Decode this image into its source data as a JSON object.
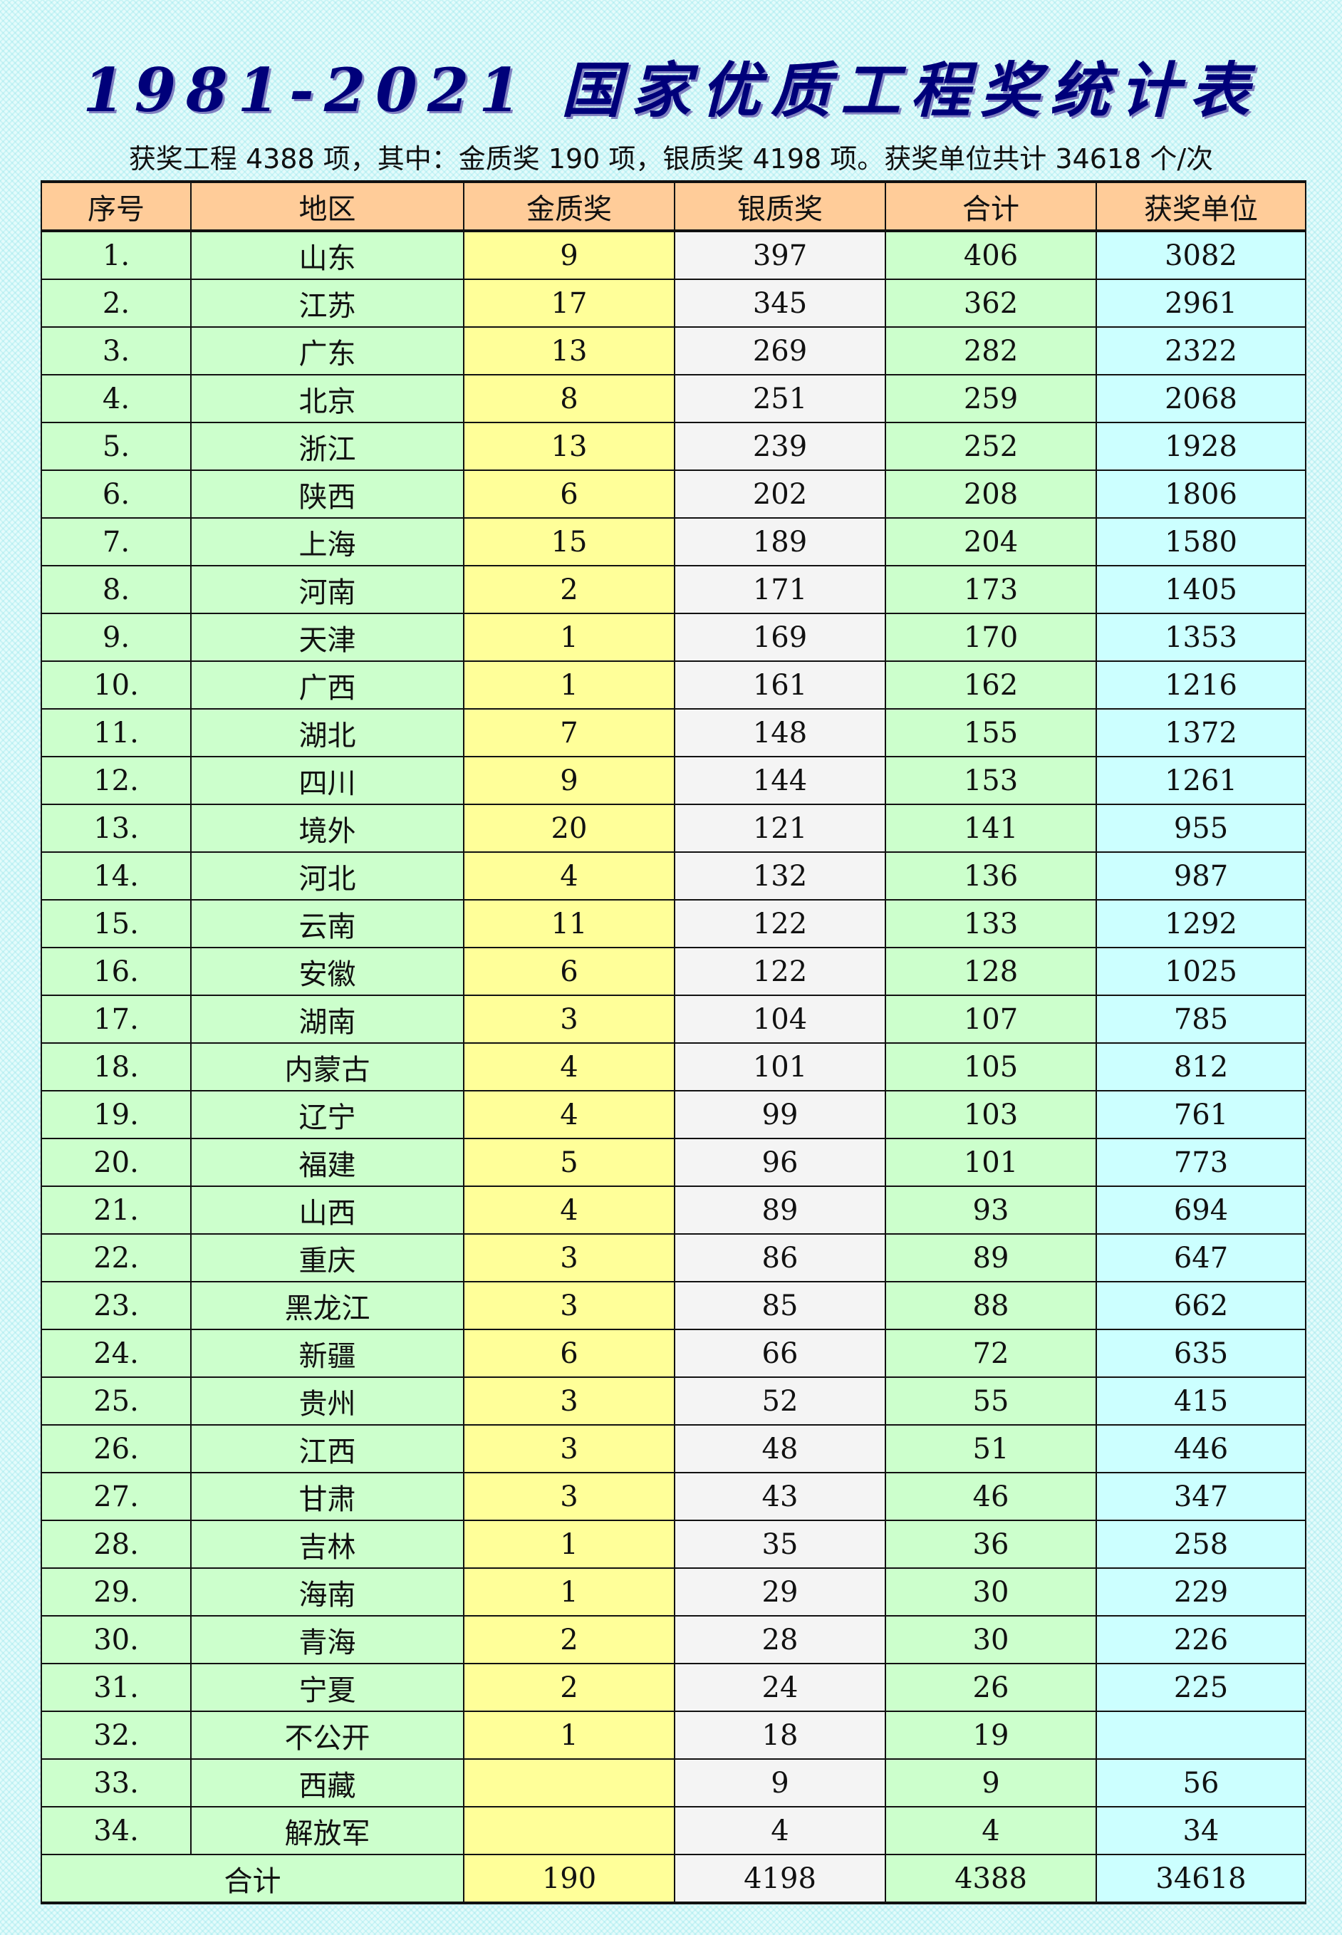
{
  "title": "1981-2021 国家优质工程奖统计表",
  "subtitle": "获奖工程 4388 项，其中：金质奖 190 项，银质奖 4198 项。获奖单位共计 34618 个/次",
  "colors": {
    "header": "#ffcc99",
    "region": "#ccffcc",
    "gold": "#ffff99",
    "silver": "#f4f4f4",
    "total": "#ccffcc",
    "units": "#ccffff",
    "title": "#00007a"
  },
  "table": {
    "headers": [
      "序号",
      "地区",
      "金质奖",
      "银质奖",
      "合计",
      "获奖单位"
    ],
    "rows": [
      [
        "1.",
        "山东",
        "9",
        "397",
        "406",
        "3082"
      ],
      [
        "2.",
        "江苏",
        "17",
        "345",
        "362",
        "2961"
      ],
      [
        "3.",
        "广东",
        "13",
        "269",
        "282",
        "2322"
      ],
      [
        "4.",
        "北京",
        "8",
        "251",
        "259",
        "2068"
      ],
      [
        "5.",
        "浙江",
        "13",
        "239",
        "252",
        "1928"
      ],
      [
        "6.",
        "陕西",
        "6",
        "202",
        "208",
        "1806"
      ],
      [
        "7.",
        "上海",
        "15",
        "189",
        "204",
        "1580"
      ],
      [
        "8.",
        "河南",
        "2",
        "171",
        "173",
        "1405"
      ],
      [
        "9.",
        "天津",
        "1",
        "169",
        "170",
        "1353"
      ],
      [
        "10.",
        "广西",
        "1",
        "161",
        "162",
        "1216"
      ],
      [
        "11.",
        "湖北",
        "7",
        "148",
        "155",
        "1372"
      ],
      [
        "12.",
        "四川",
        "9",
        "144",
        "153",
        "1261"
      ],
      [
        "13.",
        "境外",
        "20",
        "121",
        "141",
        "955"
      ],
      [
        "14.",
        "河北",
        "4",
        "132",
        "136",
        "987"
      ],
      [
        "15.",
        "云南",
        "11",
        "122",
        "133",
        "1292"
      ],
      [
        "16.",
        "安徽",
        "6",
        "122",
        "128",
        "1025"
      ],
      [
        "17.",
        "湖南",
        "3",
        "104",
        "107",
        "785"
      ],
      [
        "18.",
        "内蒙古",
        "4",
        "101",
        "105",
        "812"
      ],
      [
        "19.",
        "辽宁",
        "4",
        "99",
        "103",
        "761"
      ],
      [
        "20.",
        "福建",
        "5",
        "96",
        "101",
        "773"
      ],
      [
        "21.",
        "山西",
        "4",
        "89",
        "93",
        "694"
      ],
      [
        "22.",
        "重庆",
        "3",
        "86",
        "89",
        "647"
      ],
      [
        "23.",
        "黑龙江",
        "3",
        "85",
        "88",
        "662"
      ],
      [
        "24.",
        "新疆",
        "6",
        "66",
        "72",
        "635"
      ],
      [
        "25.",
        "贵州",
        "3",
        "52",
        "55",
        "415"
      ],
      [
        "26.",
        "江西",
        "3",
        "48",
        "51",
        "446"
      ],
      [
        "27.",
        "甘肃",
        "3",
        "43",
        "46",
        "347"
      ],
      [
        "28.",
        "吉林",
        "1",
        "35",
        "36",
        "258"
      ],
      [
        "29.",
        "海南",
        "1",
        "29",
        "30",
        "229"
      ],
      [
        "30.",
        "青海",
        "2",
        "28",
        "30",
        "226"
      ],
      [
        "31.",
        "宁夏",
        "2",
        "24",
        "26",
        "225"
      ],
      [
        "32.",
        "不公开",
        "1",
        "18",
        "19",
        ""
      ],
      [
        "33.",
        "西藏",
        "",
        "9",
        "9",
        "56"
      ],
      [
        "34.",
        "解放军",
        "",
        "4",
        "4",
        "34"
      ]
    ],
    "total": {
      "label": "合计",
      "gold": "190",
      "silver": "4198",
      "sum": "4388",
      "units": "34618"
    }
  }
}
